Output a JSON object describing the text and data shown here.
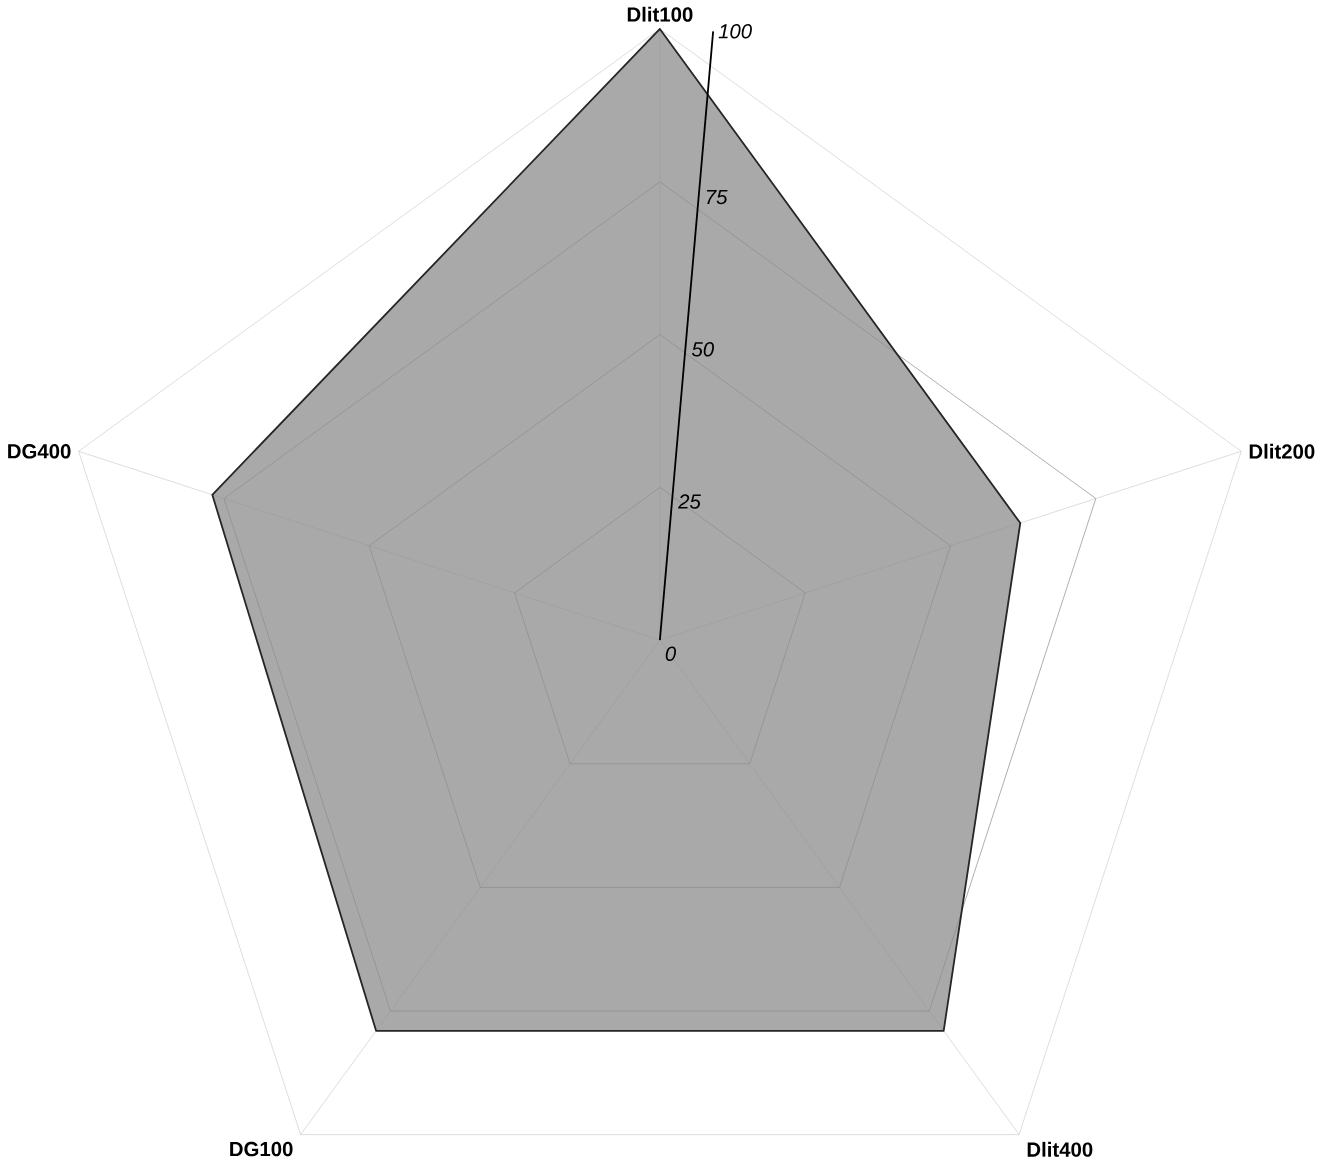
{
  "chart_data": {
    "type": "radar",
    "categories": [
      "Dlit100",
      "Dlit200",
      "Dlit400",
      "DG100",
      "DG400"
    ],
    "series": [
      {
        "color": "#8c8c8c",
        "values": [
          100,
          62,
          79,
          79,
          77
        ]
      }
    ],
    "ylim": [
      0,
      100
    ],
    "yticks": [
      0,
      25,
      50,
      75,
      100
    ],
    "grid": true,
    "marker": "none"
  }
}
